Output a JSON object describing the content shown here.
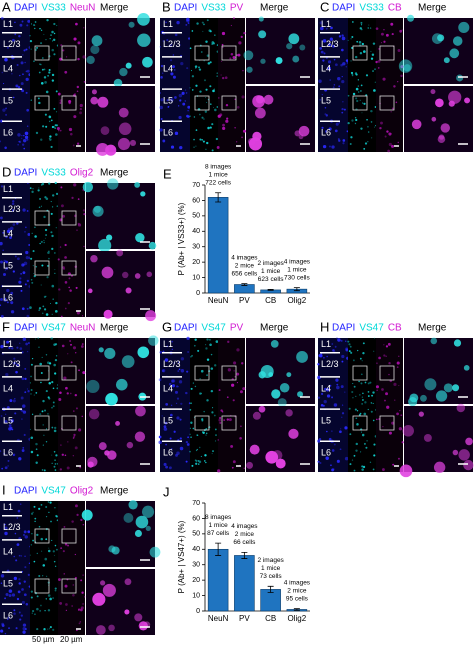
{
  "panels": [
    {
      "label": "A",
      "channels": [
        "DAPI",
        "VS33",
        "NeuN"
      ]
    },
    {
      "label": "B",
      "channels": [
        "DAPI",
        "VS33",
        "PV"
      ]
    },
    {
      "label": "C",
      "channels": [
        "DAPI",
        "VS33",
        "CB"
      ]
    },
    {
      "label": "D",
      "channels": [
        "DAPI",
        "VS33",
        "Olig2"
      ]
    },
    {
      "label": "F",
      "channels": [
        "DAPI",
        "VS47",
        "NeuN"
      ]
    },
    {
      "label": "G",
      "channels": [
        "DAPI",
        "VS47",
        "PV"
      ]
    },
    {
      "label": "H",
      "channels": [
        "DAPI",
        "VS47",
        "CB"
      ]
    },
    {
      "label": "I",
      "channels": [
        "DAPI",
        "VS47",
        "Olig2"
      ]
    }
  ],
  "merge_label": "Merge",
  "layers": [
    "L1",
    "L2/3",
    "L4",
    "L5",
    "L6"
  ],
  "scale_labels": [
    "50 µm",
    "20 µm"
  ],
  "chart_data": [
    {
      "type": "bar",
      "label": "E",
      "ylabel": "P (Ab+ | VS33+) (%)",
      "categories": [
        "NeuN",
        "PV",
        "CB",
        "Olig2"
      ],
      "values": [
        62,
        5.5,
        2,
        2.5
      ],
      "errors": [
        3,
        0.6,
        0.3,
        1
      ],
      "annotations": [
        [
          "8 images",
          "1 mice",
          "722 cells"
        ],
        [
          "4 images",
          "2 mice",
          "656 cells"
        ],
        [
          "2 images",
          "1 mice",
          "623 cells"
        ],
        [
          "4 images",
          "1 mice",
          "730 cells"
        ]
      ],
      "color": "#1f74c0",
      "ylim": [
        0,
        70
      ],
      "yticks": [
        0,
        10,
        20,
        30,
        40,
        50,
        60,
        70
      ]
    },
    {
      "type": "bar",
      "label": "J",
      "ylabel": "P (Ab+ | VS47+) (%)",
      "categories": [
        "NeuN",
        "PV",
        "CB",
        "Olig2"
      ],
      "values": [
        40,
        36,
        14,
        1
      ],
      "errors": [
        4,
        2,
        2,
        0.5
      ],
      "annotations": [
        [
          "8 images",
          "1 mice",
          "87 cells"
        ],
        [
          "4 images",
          "2 mice",
          "66 cells"
        ],
        [
          "2 images",
          "1 mice",
          "73 cells"
        ],
        [
          "4 images",
          "2 mice",
          "95 cells"
        ]
      ],
      "color": "#1f74c0",
      "ylim": [
        0,
        70
      ],
      "yticks": [
        0,
        10,
        20,
        30,
        40,
        50,
        60,
        70
      ]
    }
  ]
}
